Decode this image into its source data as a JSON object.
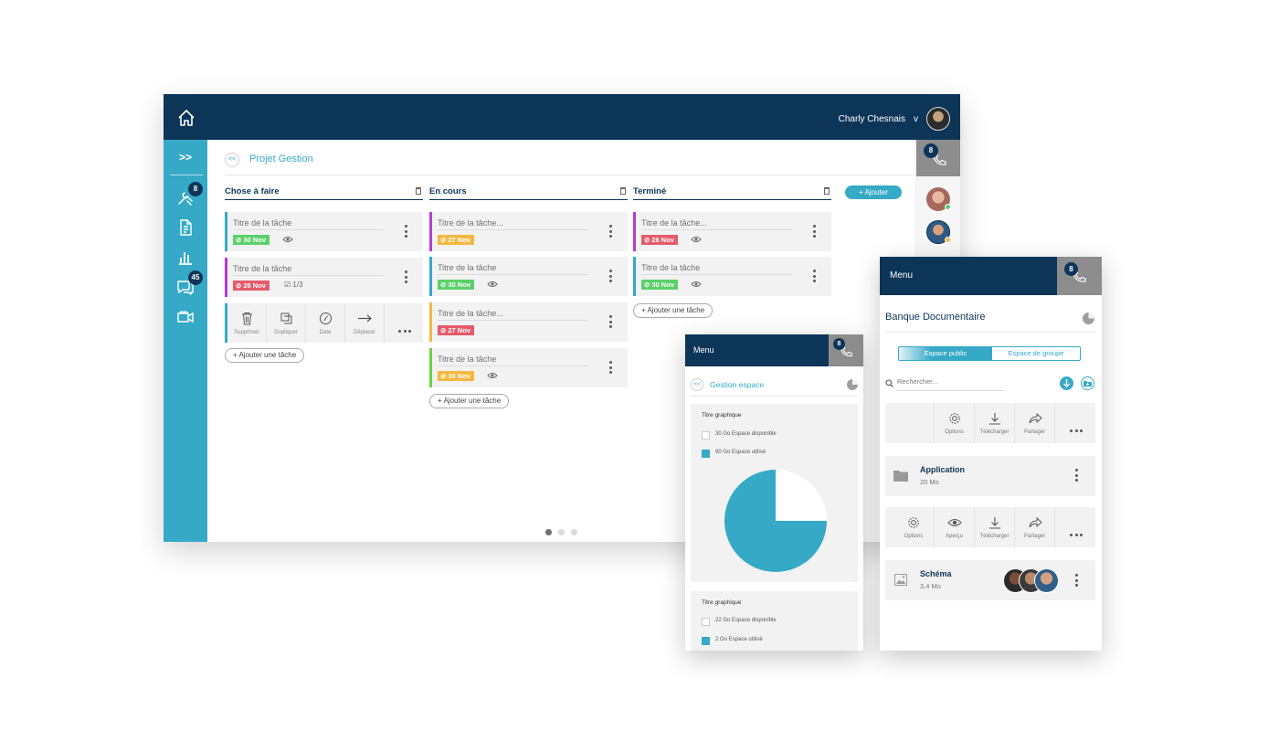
{
  "colors": {
    "navy": "#0c3558",
    "teal": "#36a9c7",
    "grey_header": "#8d8d8d",
    "green": "#5cd06a",
    "red": "#e55b6c",
    "orange": "#f4b942",
    "purple": "#b63bd9",
    "lime": "#6ed14b"
  },
  "desktop": {
    "user_name": "Charly Chesnais",
    "user_caret": "v",
    "sidebar": {
      "toggle": ">>",
      "items": [
        {
          "icon": "tools-icon",
          "badge": "8"
        },
        {
          "icon": "document-icon",
          "badge": ""
        },
        {
          "icon": "bar-chart-icon",
          "badge": ""
        },
        {
          "icon": "chat-icon",
          "badge": "45"
        },
        {
          "icon": "video-camera-icon",
          "badge": ""
        }
      ]
    },
    "breadcrumb": {
      "back": "<<",
      "title": "Projet Gestion"
    },
    "add_button": "+ Ajouter",
    "call_badge": "8",
    "columns": [
      {
        "title": "Chose à faire",
        "add_task": "+ Ajouter une tâche",
        "cards": [
          {
            "title": "Titre de la tâche",
            "date": "30 Nov",
            "color": "#36a9c7",
            "date_color": "#5cd06a",
            "extra": "eye"
          },
          {
            "title": "Titre de la tâche",
            "date": "26 Nov",
            "color": "#b63bd9",
            "date_color": "#e55b6c",
            "extra": "1/3"
          }
        ],
        "actions": [
          {
            "label": "Supprimer",
            "icon": "trash-icon"
          },
          {
            "label": "Dupliquer",
            "icon": "duplicate-icon"
          },
          {
            "label": "Date",
            "icon": "clock-icon"
          },
          {
            "label": "Déplacer",
            "icon": "arrow-right-icon"
          }
        ]
      },
      {
        "title": "En cours",
        "add_task": "+ Ajouter une tâche",
        "cards": [
          {
            "title": "Titre de la tâche...",
            "date": "27 Nov",
            "color": "#b63bd9",
            "date_color": "#f4b942",
            "extra": ""
          },
          {
            "title": "Titre de la tâche",
            "date": "30 Nov",
            "color": "#36a9c7",
            "date_color": "#5cd06a",
            "extra": "eye"
          },
          {
            "title": "Titre de la tâche...",
            "date": "27 Nov",
            "color": "#f4b942",
            "date_color": "#e55b6c",
            "extra": ""
          },
          {
            "title": "Titre de la tâche",
            "date": "30 Nov",
            "color": "#6ed14b",
            "date_color": "#f4b942",
            "extra": "eye"
          }
        ]
      },
      {
        "title": "Terminé",
        "add_task": "+ Ajouter une tâche",
        "cards": [
          {
            "title": "Titre de la tâche...",
            "date": "26 Nov",
            "color": "#b63bd9",
            "date_color": "#e55b6c",
            "extra": "eye"
          },
          {
            "title": "Titre de la tâche",
            "date": "30 Nov",
            "color": "#36a9c7",
            "date_color": "#5cd06a",
            "extra": "eye"
          }
        ]
      }
    ],
    "pager": {
      "pages": 3,
      "current": 1
    }
  },
  "mobile1": {
    "menu": "Menu",
    "call_badge": "8",
    "breadcrumb": {
      "back": "<<",
      "title": "Gestion espace"
    },
    "charts": [
      {
        "title": "Titre graphique",
        "legend": [
          "30 Go Espace disponible",
          "90 Go Espace utilisé"
        ]
      },
      {
        "title": "Titre graphique",
        "legend": [
          "22 Go Espace disponible",
          "2 Go Espace utilisé"
        ]
      }
    ]
  },
  "chart_data": {
    "type": "pie",
    "title": "Titre graphique",
    "categories": [
      "30 Go Espace disponible",
      "90 Go Espace utilisé"
    ],
    "values": [
      30,
      90
    ],
    "colors": [
      "#ffffff",
      "#36a9c7"
    ]
  },
  "mobile2": {
    "menu": "Menu",
    "call_badge": "8",
    "title": "Banque Documentaire",
    "tabs": [
      "Espace public",
      "Espace de groupe"
    ],
    "search_placeholder": "Rechercher...",
    "actions1": [
      "Options",
      "Télécharger",
      "Partager"
    ],
    "folder": {
      "name": "Application",
      "size": "20 Mo"
    },
    "actions2": [
      "Options",
      "Aperçu",
      "Télécharger",
      "Partager"
    ],
    "file": {
      "name": "Schéma",
      "size": "3,4 Mo"
    }
  }
}
